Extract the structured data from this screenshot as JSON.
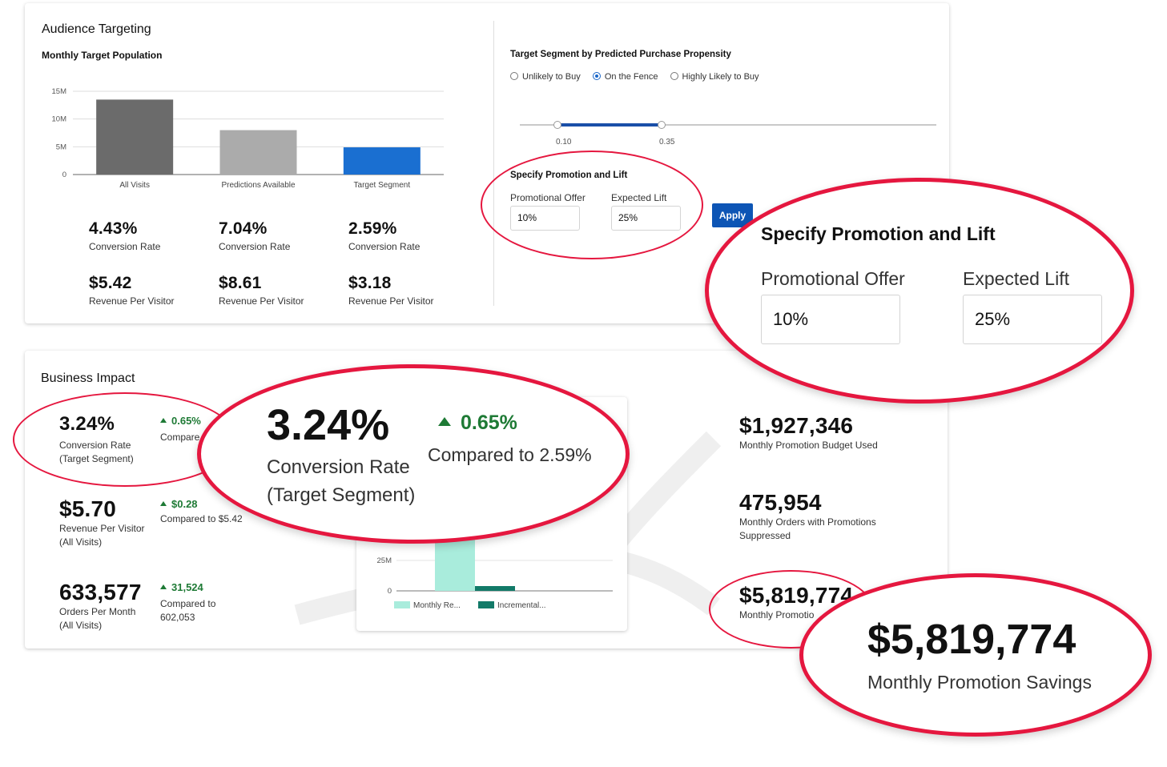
{
  "audience": {
    "title": "Audience Targeting",
    "chart_title": "Monthly Target Population",
    "segment_title": "Target Segment by Predicted Purchase Propensity",
    "radio_options": [
      {
        "label": "Unlikely to Buy",
        "selected": false
      },
      {
        "label": "On the Fence",
        "selected": true
      },
      {
        "label": "Highly Likely to Buy",
        "selected": false
      }
    ],
    "slider": {
      "low_label": "0.10",
      "high_label": "0.35",
      "low": 0.1,
      "high": 0.35
    },
    "promo_title": "Specify Promotion and Lift",
    "promo_offer_label": "Promotional Offer",
    "promo_offer_value": "10%",
    "lift_label": "Expected Lift",
    "lift_value": "25%",
    "apply_label": "Apply",
    "stats": [
      {
        "rate": "4.43%",
        "rate_label": "Conversion Rate",
        "rpv": "$5.42",
        "rpv_label": "Revenue Per Visitor"
      },
      {
        "rate": "7.04%",
        "rate_label": "Conversion Rate",
        "rpv": "$8.61",
        "rpv_label": "Revenue Per Visitor"
      },
      {
        "rate": "2.59%",
        "rate_label": "Conversion Rate",
        "rpv": "$3.18",
        "rpv_label": "Revenue Per Visitor"
      }
    ]
  },
  "chart_data": [
    {
      "type": "bar",
      "categories": [
        "All Visits",
        "Predictions Available",
        "Target Segment"
      ],
      "values": [
        13500000,
        8000000,
        4900000
      ],
      "ticks": [
        "0",
        "5M",
        "10M",
        "15M"
      ],
      "ylim": [
        0,
        15000000
      ],
      "colors": [
        "#6b6b6b",
        "#ababab",
        "#1a6fd1"
      ]
    },
    {
      "type": "bar",
      "categories": [
        "Monthly Re...",
        "Incremental..."
      ],
      "legend": [
        "Monthly Re...",
        "Incremental..."
      ],
      "ticks": [
        "0",
        "25M"
      ],
      "colors": [
        "#a9ecdc",
        "#127a68"
      ]
    }
  ],
  "business": {
    "title": "Business Impact",
    "metrics": [
      {
        "value": "3.24%",
        "label1": "Conversion Rate",
        "label2": "(Target Segment)",
        "delta": "0.65%",
        "compare": "Compare"
      },
      {
        "value": "$5.70",
        "label1": "Revenue Per Visitor",
        "label2": "(All Visits)",
        "delta": "$0.28",
        "compare": "Compared to $5.42"
      },
      {
        "value": "633,577",
        "label1": "Orders Per Month",
        "label2": "(All Visits)",
        "delta": "31,524",
        "compare": "Compared to",
        "compare2": "602,053"
      }
    ],
    "right": [
      {
        "value": "$1,927,346",
        "label": "Monthly Promotion Budget Used"
      },
      {
        "value": "475,954",
        "label": "Monthly Orders with Promotions",
        "label2": "Suppressed"
      },
      {
        "value": "$5,819,774",
        "label": "Monthly Promotio"
      }
    ]
  },
  "zoom_promo": {
    "title": "Specify Promotion and Lift",
    "offer_label": "Promotional Offer",
    "offer_value": "10%",
    "lift_label": "Expected Lift",
    "lift_value": "25%"
  },
  "zoom_conversion": {
    "value": "3.24%",
    "label1": "Conversion Rate",
    "label2": "(Target Segment)",
    "delta": "0.65%",
    "compare": "Compared to 2.59%"
  },
  "zoom_savings": {
    "value": "$5,819,774",
    "label": "Monthly Promotion Savings"
  },
  "colors": {
    "accent": "#1a66c8",
    "highlight": "#e5173f",
    "positive": "#1e7a35"
  }
}
